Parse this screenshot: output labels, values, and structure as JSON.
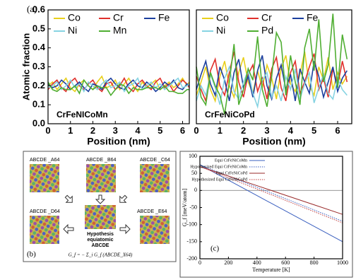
{
  "chart_data": [
    {
      "type": "line",
      "label": "(a)",
      "annotation": "CrFeNICoMn",
      "xlabel": "Position (nm)",
      "ylabel": "Atomic fraction",
      "xlim": [
        0,
        6.3
      ],
      "xticks": [
        0,
        1,
        2,
        3,
        4,
        5,
        6
      ],
      "ylim": [
        0,
        0.6
      ],
      "yticks": [
        {
          "value": 0,
          "label": "0.0"
        },
        0.1,
        0.2,
        0.3,
        0.4,
        0.5,
        0.6
      ],
      "x": [
        0,
        0.2,
        0.4,
        0.6,
        0.8,
        1,
        1.2,
        1.4,
        1.6,
        1.8,
        2,
        2.2,
        2.4,
        2.6,
        2.8,
        3,
        3.2,
        3.4,
        3.6,
        3.8,
        4,
        4.2,
        4.4,
        4.6,
        4.8,
        5,
        5.2,
        5.4,
        5.6,
        5.8,
        6,
        6.2,
        6.3
      ],
      "series": [
        {
          "name": "Co",
          "color": "#e8cf1c",
          "values": [
            0.2,
            0.22,
            0.18,
            0.21,
            0.24,
            0.19,
            0.17,
            0.21,
            0.23,
            0.2,
            0.18,
            0.22,
            0.25,
            0.19,
            0.2,
            0.23,
            0.18,
            0.21,
            0.24,
            0.2,
            0.17,
            0.22,
            0.19,
            0.21,
            0.23,
            0.18,
            0.2,
            0.22,
            0.19,
            0.21,
            0.24,
            0.2,
            0.22
          ]
        },
        {
          "name": "Cr",
          "color": "#e0302c",
          "values": [
            0.18,
            0.21,
            0.23,
            0.19,
            0.17,
            0.22,
            0.24,
            0.2,
            0.18,
            0.21,
            0.23,
            0.19,
            0.17,
            0.21,
            0.22,
            0.18,
            0.2,
            0.24,
            0.19,
            0.17,
            0.21,
            0.23,
            0.2,
            0.18,
            0.22,
            0.24,
            0.19,
            0.21,
            0.17,
            0.2,
            0.23,
            0.21,
            0.19
          ]
        },
        {
          "name": "Fe",
          "color": "#1c3f9e",
          "values": [
            0.21,
            0.19,
            0.2,
            0.23,
            0.21,
            0.18,
            0.2,
            0.22,
            0.19,
            0.17,
            0.21,
            0.2,
            0.18,
            0.22,
            0.24,
            0.21,
            0.19,
            0.18,
            0.21,
            0.23,
            0.2,
            0.19,
            0.22,
            0.2,
            0.17,
            0.19,
            0.22,
            0.2,
            0.23,
            0.19,
            0.18,
            0.21,
            0.2
          ]
        },
        {
          "name": "Ni",
          "color": "#86d3e2",
          "values": [
            0.19,
            0.2,
            0.22,
            0.18,
            0.2,
            0.23,
            0.19,
            0.21,
            0.17,
            0.22,
            0.2,
            0.18,
            0.21,
            0.23,
            0.19,
            0.2,
            0.22,
            0.17,
            0.2,
            0.21,
            0.24,
            0.18,
            0.2,
            0.22,
            0.19,
            0.21,
            0.18,
            0.2,
            0.22,
            0.24,
            0.19,
            0.2,
            0.21
          ]
        },
        {
          "name": "Mn",
          "color": "#4fae32",
          "values": [
            0.22,
            0.18,
            0.17,
            0.19,
            0.18,
            0.18,
            0.2,
            0.16,
            0.23,
            0.2,
            0.18,
            0.2,
            0.19,
            0.19,
            0.15,
            0.18,
            0.21,
            0.2,
            0.16,
            0.19,
            0.18,
            0.18,
            0.19,
            0.19,
            0.19,
            0.18,
            0.2,
            0.17,
            0.17,
            0.16,
            0.16,
            0.18,
            0.18
          ]
        }
      ]
    },
    {
      "type": "line",
      "annotation": "CrFeNiCoPd",
      "xlabel": "Position (nm)",
      "xlim": [
        0,
        6.6
      ],
      "xticks": [
        0,
        1,
        2,
        3,
        4,
        5,
        6
      ],
      "ylim": [
        0,
        0.6
      ],
      "x": [
        0,
        0.2,
        0.4,
        0.6,
        0.8,
        1,
        1.2,
        1.4,
        1.6,
        1.8,
        2,
        2.2,
        2.4,
        2.6,
        2.8,
        3,
        3.2,
        3.4,
        3.6,
        3.8,
        4,
        4.2,
        4.4,
        4.6,
        4.8,
        5,
        5.2,
        5.4,
        5.6,
        5.8,
        6,
        6.2,
        6.4
      ],
      "series": [
        {
          "name": "Co",
          "color": "#e8cf1c",
          "values": [
            0.15,
            0.22,
            0.3,
            0.18,
            0.12,
            0.25,
            0.33,
            0.2,
            0.14,
            0.27,
            0.35,
            0.22,
            0.16,
            0.28,
            0.19,
            0.31,
            0.24,
            0.13,
            0.29,
            0.36,
            0.21,
            0.17,
            0.26,
            0.38,
            0.2,
            0.15,
            0.3,
            0.23,
            0.35,
            0.18,
            0.27,
            0.21,
            0.25
          ]
        },
        {
          "name": "Cr",
          "color": "#e0302c",
          "values": [
            0.25,
            0.18,
            0.12,
            0.28,
            0.34,
            0.2,
            0.15,
            0.27,
            0.38,
            0.22,
            0.14,
            0.26,
            0.31,
            0.17,
            0.24,
            0.13,
            0.29,
            0.35,
            0.19,
            0.12,
            0.27,
            0.33,
            0.16,
            0.22,
            0.3,
            0.37,
            0.18,
            0.24,
            0.14,
            0.29,
            0.2,
            0.33,
            0.22
          ]
        },
        {
          "name": "Fe",
          "color": "#1c3f9e",
          "values": [
            0.18,
            0.26,
            0.33,
            0.21,
            0.15,
            0.3,
            0.23,
            0.12,
            0.27,
            0.34,
            0.19,
            0.25,
            0.14,
            0.28,
            0.36,
            0.2,
            0.13,
            0.24,
            0.31,
            0.18,
            0.26,
            0.12,
            0.29,
            0.22,
            0.16,
            0.33,
            0.25,
            0.14,
            0.22,
            0.3,
            0.17,
            0.24,
            0.28
          ]
        },
        {
          "name": "Ni",
          "color": "#86d3e2",
          "values": [
            0.12,
            0.2,
            0.15,
            0.26,
            0.19,
            0.1,
            0.24,
            0.3,
            0.17,
            0.13,
            0.22,
            0.28,
            0.16,
            0.09,
            0.23,
            0.27,
            0.14,
            0.2,
            0.12,
            0.25,
            0.18,
            0.29,
            0.13,
            0.21,
            0.27,
            0.11,
            0.19,
            0.26,
            0.16,
            0.13,
            0.24,
            0.18,
            0.15
          ]
        },
        {
          "name": "Pd",
          "color": "#4fae32",
          "values": [
            0.3,
            0.14,
            0.1,
            0.27,
            0.2,
            0.15,
            0.05,
            0.22,
            0.42,
            0.1,
            0.18,
            0.29,
            0.23,
            0.46,
            0.18,
            0.09,
            0.25,
            0.48,
            0.43,
            0.15,
            0.36,
            0.22,
            0.1,
            0.4,
            0.5,
            0.28,
            0.55,
            0.22,
            0.31,
            0.58,
            0.19,
            0.47,
            0.34
          ]
        }
      ]
    },
    {
      "type": "line",
      "label": "(c)",
      "xlabel": "Temperature [K]",
      "ylabel": "G_f [meV/atom]",
      "xlim": [
        0,
        1000
      ],
      "xticks": [
        0,
        200,
        400,
        600,
        800,
        1000
      ],
      "ylim": [
        -200,
        100
      ],
      "yticks": [
        -200,
        -150,
        -100,
        -50,
        0,
        50,
        100
      ],
      "x": [
        0,
        200,
        400,
        600,
        800,
        1000
      ],
      "series": [
        {
          "name": "Equi CrFeNiCoMn",
          "color": "#3a5fbf",
          "style": "solid",
          "values": [
            75,
            30,
            -15,
            -60,
            -105,
            -150
          ]
        },
        {
          "name": "Hypothesized Equi CrFeNiCoMn",
          "color": "#3a5fbf",
          "style": "dotted",
          "values": [
            75,
            42,
            9,
            -24,
            -57,
            -90
          ]
        },
        {
          "name": "Equi CrFeNiCoPd",
          "color": "#9a2a2a",
          "style": "solid",
          "values": [
            70,
            42,
            14,
            -14,
            -42,
            -70
          ]
        },
        {
          "name": "Hypothesized Equi CrFeNiCoPd",
          "color": "#c04040",
          "style": "dotted",
          "values": [
            70,
            37,
            4,
            -29,
            -62,
            -95
          ]
        }
      ]
    }
  ],
  "diagram": {
    "label": "(b)",
    "nodes": [
      "ABCDE _A64",
      "ABCDE _B64",
      "ABCDE _C64",
      "ABCDE _D64",
      "ABCDE _E64"
    ],
    "center": [
      "Hypothesis",
      "equiatomic",
      "ABCDE"
    ],
    "formula": "G_f = − Σ_i G_f (ABCDE_X64)"
  }
}
